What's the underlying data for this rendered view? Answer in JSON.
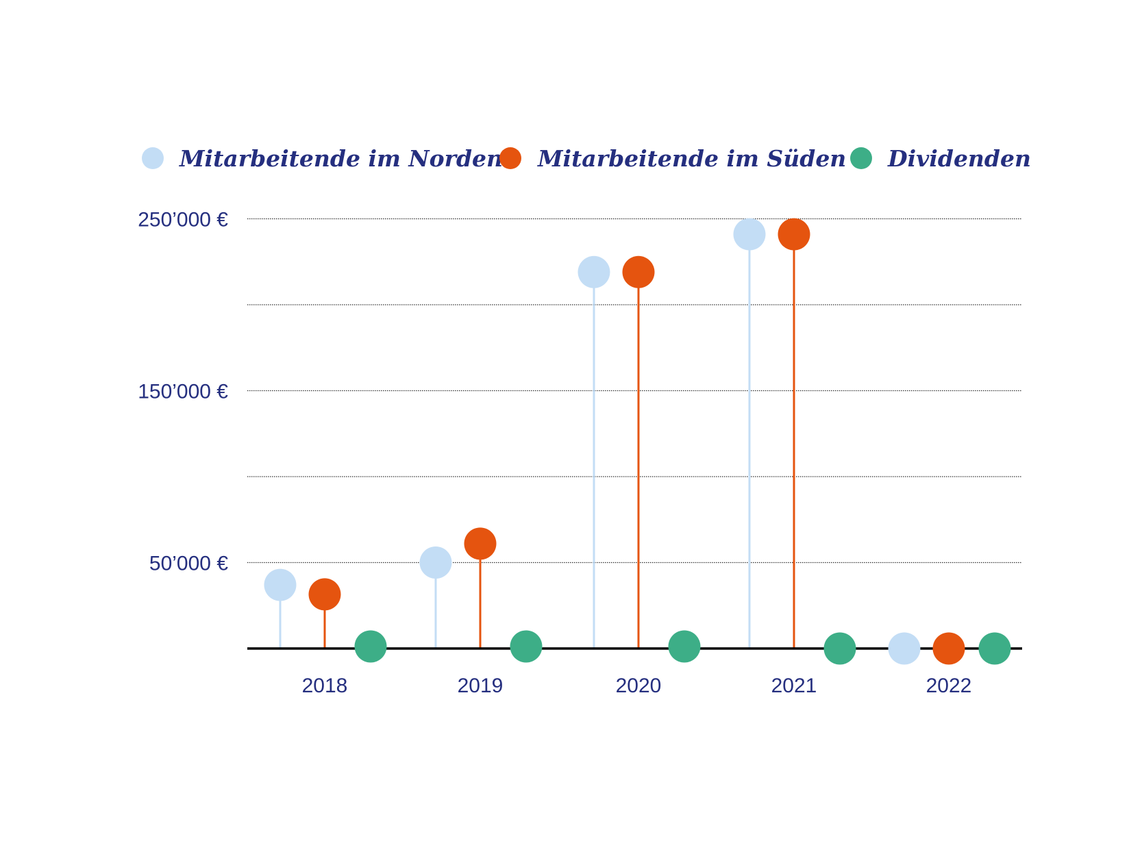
{
  "chart_data": {
    "type": "lollipop",
    "title": "",
    "xlabel": "",
    "ylabel": "",
    "categories": [
      "2018",
      "2019",
      "2020",
      "2021",
      "2022"
    ],
    "series": [
      {
        "name": "Mitarbeitende im Norden",
        "color": "#c3ddf5",
        "values": [
          37000,
          50000,
          219000,
          241000,
          0
        ]
      },
      {
        "name": "Mitarbeitende im Süden",
        "color": "#e5540f",
        "values": [
          31500,
          61000,
          219000,
          241000,
          0
        ]
      },
      {
        "name": "Dividenden",
        "color": "#3dae87",
        "values": [
          0,
          0,
          0,
          0,
          0
        ]
      }
    ],
    "ylim": [
      0,
      250000
    ],
    "gridlines": [
      50000,
      100000,
      150000,
      200000,
      250000
    ],
    "ytick_labels": [
      {
        "value": 50000,
        "label": "50’000 €"
      },
      {
        "value": 150000,
        "label": "150’000 €"
      },
      {
        "value": 250000,
        "label": "250’000 €"
      }
    ],
    "grid": true,
    "legend_position": "top",
    "text_color": "#252f7f"
  }
}
